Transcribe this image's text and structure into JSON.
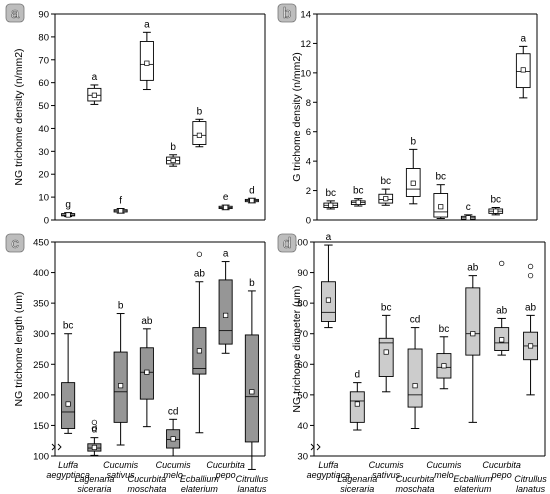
{
  "chart_data": [
    {
      "type": "boxplot",
      "panel_label": "a",
      "ylabel": "NG trichome density (n/mm2)",
      "ylim": [
        0,
        90
      ],
      "yticks": [
        0,
        10,
        20,
        30,
        40,
        50,
        60,
        70,
        80,
        90
      ],
      "categories": [
        "Luffa aegyptiaca",
        "Lagenaria siceraria",
        "Cucumis sativus",
        "Cucumis moschata",
        "Cucumis melo",
        "Ecballium elaterium",
        "Cucurbita pepo",
        "Citrullus lanatus"
      ],
      "boxes": [
        {
          "min": 1.5,
          "q1": 1.8,
          "median": 2.2,
          "q3": 2.8,
          "max": 3.2,
          "mean": 2.2,
          "letter": "g"
        },
        {
          "min": 50.5,
          "q1": 52,
          "median": 54.5,
          "q3": 57.5,
          "max": 59,
          "mean": 54.5,
          "letter": "a"
        },
        {
          "min": 3,
          "q1": 3.5,
          "median": 4,
          "q3": 4.5,
          "max": 5,
          "mean": 4,
          "letter": "f"
        },
        {
          "min": 57,
          "q1": 61,
          "median": 68,
          "q3": 78,
          "max": 82,
          "mean": 68.5,
          "letter": "a"
        },
        {
          "min": 23.5,
          "q1": 24.5,
          "median": 26,
          "q3": 27.5,
          "max": 28.5,
          "mean": 26,
          "letter": "b"
        },
        {
          "min": 32,
          "q1": 33,
          "median": 37,
          "q3": 43,
          "max": 44,
          "mean": 37,
          "letter": "b"
        },
        {
          "min": 4.5,
          "q1": 5,
          "median": 5.5,
          "q3": 6,
          "max": 6.5,
          "mean": 5.5,
          "letter": "e"
        },
        {
          "min": 7.5,
          "q1": 8,
          "median": 8.5,
          "q3": 9,
          "max": 9.5,
          "mean": 8.5,
          "letter": "d"
        }
      ]
    },
    {
      "type": "boxplot",
      "panel_label": "b",
      "ylabel": "G trichome density (n/mm2)",
      "ylim": [
        0,
        14
      ],
      "yticks": [
        0,
        2,
        4,
        6,
        8,
        10,
        12,
        14
      ],
      "categories": [
        "Luffa aegyptiaca",
        "Lagenaria siceraria",
        "Cucumis sativus",
        "Cucumis moschata",
        "Cucumis melo",
        "Ecballium elaterium",
        "Cucurbita pepo",
        "Citrullus lanatus"
      ],
      "boxes": [
        {
          "min": 0.75,
          "q1": 0.85,
          "median": 1.0,
          "q3": 1.15,
          "max": 1.3,
          "mean": 1.0,
          "letter": "bc"
        },
        {
          "min": 0.95,
          "q1": 1.05,
          "median": 1.2,
          "q3": 1.3,
          "max": 1.45,
          "mean": 1.2,
          "letter": "bc"
        },
        {
          "min": 1.0,
          "q1": 1.15,
          "median": 1.4,
          "q3": 1.75,
          "max": 2.1,
          "mean": 1.45,
          "letter": "bc"
        },
        {
          "min": 1.1,
          "q1": 1.6,
          "median": 2.1,
          "q3": 3.5,
          "max": 4.8,
          "mean": 2.5,
          "letter": "b"
        },
        {
          "min": 0.1,
          "q1": 0.2,
          "median": 0.55,
          "q3": 1.8,
          "max": 2.4,
          "mean": 0.9,
          "letter": "bc"
        },
        {
          "min": 0.02,
          "q1": 0.05,
          "median": 0.15,
          "q3": 0.25,
          "max": 0.35,
          "mean": 0.15,
          "letter": "c"
        },
        {
          "min": 0.35,
          "q1": 0.45,
          "median": 0.6,
          "q3": 0.75,
          "max": 0.85,
          "mean": 0.6,
          "letter": "bc"
        },
        {
          "min": 8.3,
          "q1": 9.0,
          "median": 10.1,
          "q3": 11.3,
          "max": 11.8,
          "mean": 10.2,
          "letter": "a"
        }
      ]
    },
    {
      "type": "boxplot",
      "panel_label": "c",
      "ylabel": "NG trichome length (um)",
      "ylim": [
        100,
        450
      ],
      "yticks": [
        100,
        150,
        200,
        250,
        300,
        350,
        400,
        450
      ],
      "categories": [
        "Luffa aegyptiaca",
        "Lagenaria siceraria",
        "Cucumis sativus",
        "Cucurbita moschata",
        "Cucumis melo",
        "Ecballium elaterium",
        "Cucurbita pepo",
        "Citrullus lanatus"
      ],
      "boxes": [
        {
          "min": 137,
          "q1": 145,
          "median": 172,
          "q3": 220,
          "max": 300,
          "mean": 185,
          "letter": "bc",
          "outliers": []
        },
        {
          "min": 101,
          "q1": 108,
          "median": 113,
          "q3": 120,
          "max": 130,
          "mean": 114,
          "letter": "d",
          "outliers": [
            145,
            155
          ]
        },
        {
          "min": 118,
          "q1": 155,
          "median": 205,
          "q3": 270,
          "max": 333,
          "mean": 215,
          "letter": "b",
          "outliers": []
        },
        {
          "min": 148,
          "q1": 193,
          "median": 237,
          "q3": 277,
          "max": 308,
          "mean": 237,
          "letter": "ab",
          "outliers": []
        },
        {
          "min": 100,
          "q1": 113,
          "median": 127,
          "q3": 143,
          "max": 160,
          "mean": 128,
          "letter": "cd",
          "outliers": []
        },
        {
          "min": 138,
          "q1": 234,
          "median": 243,
          "q3": 310,
          "max": 385,
          "mean": 272,
          "letter": "ab",
          "outliers": [
            430
          ]
        },
        {
          "min": 268,
          "q1": 283,
          "median": 305,
          "q3": 388,
          "max": 418,
          "mean": 330,
          "letter": "a",
          "outliers": []
        },
        {
          "min": 78,
          "q1": 123,
          "median": 197,
          "q3": 298,
          "max": 370,
          "mean": 205,
          "letter": "b",
          "outliers": []
        }
      ]
    },
    {
      "type": "boxplot",
      "panel_label": "d",
      "ylabel": "NG trichome diameter (um)",
      "ylim": [
        30,
        100
      ],
      "yticks": [
        30,
        40,
        50,
        60,
        70,
        80,
        90,
        100
      ],
      "categories": [
        "Luffa aegyptiaca",
        "Lagenaria siceraria",
        "Cucumis sativus",
        "Cucurbita moschata",
        "Cucumis melo",
        "Ecballium elaterium",
        "Cucurbita pepo",
        "Citrullus lanatus"
      ],
      "boxes": [
        {
          "min": 72,
          "q1": 74,
          "median": 77,
          "q3": 87,
          "max": 99,
          "mean": 81,
          "letter": "a",
          "outliers": []
        },
        {
          "min": 38.5,
          "q1": 41,
          "median": 48,
          "q3": 51,
          "max": 54,
          "mean": 47,
          "letter": "d",
          "outliers": []
        },
        {
          "min": 51,
          "q1": 56,
          "median": 67,
          "q3": 68.5,
          "max": 76,
          "mean": 64,
          "letter": "bc",
          "outliers": []
        },
        {
          "min": 39,
          "q1": 46,
          "median": 50,
          "q3": 65,
          "max": 72,
          "mean": 53,
          "letter": "cd",
          "outliers": []
        },
        {
          "min": 52,
          "q1": 55.5,
          "median": 59,
          "q3": 63.5,
          "max": 69,
          "mean": 59.5,
          "letter": "bc",
          "outliers": []
        },
        {
          "min": 41,
          "q1": 63,
          "median": 70,
          "q3": 85,
          "max": 89,
          "mean": 70,
          "letter": "ab",
          "outliers": []
        },
        {
          "min": 63,
          "q1": 64.5,
          "median": 67,
          "q3": 72,
          "max": 75,
          "mean": 68,
          "letter": "ab",
          "outliers": [
            93
          ]
        },
        {
          "min": 50,
          "q1": 61.5,
          "median": 66,
          "q3": 70.5,
          "max": 76,
          "mean": 66,
          "letter": "ab",
          "outliers": [
            89,
            92
          ]
        }
      ]
    }
  ],
  "x_labels": {
    "c": [
      {
        "line1": "Luffa",
        "line2": "aegyptiaca"
      },
      {
        "line1": "Lagenaria",
        "line2": "siceraria"
      },
      {
        "line1": "Cucumis",
        "line2": "sativus"
      },
      {
        "line1": "Cucurbita",
        "line2": "moschata"
      },
      {
        "line1": "Cucumis",
        "line2": "melo"
      },
      {
        "line1": "Ecballium",
        "line2": "elaterium"
      },
      {
        "line1": "Cucurbita",
        "line2": "pepo"
      },
      {
        "line1": "Citrullus",
        "line2": "lanatus"
      }
    ],
    "d": [
      {
        "line1": "Luffa",
        "line2": "aegyptiaca"
      },
      {
        "line1": "Lagenaria",
        "line2": "siceraria"
      },
      {
        "line1": "Cucumis",
        "line2": "sativus"
      },
      {
        "line1": "Cucurbita",
        "line2": "moschata"
      },
      {
        "line1": "Cucumis",
        "line2": "melo"
      },
      {
        "line1": "Ecballium",
        "line2": "elaterium"
      },
      {
        "line1": "Cucurbita",
        "line2": "pepo"
      },
      {
        "line1": "Citrullus",
        "line2": "lanatus"
      }
    ]
  },
  "colors": {
    "open_box_fill": "#ffffff",
    "filled_box_c": "#969696",
    "filled_box_d": "#cccccc",
    "stroke": "#000000",
    "panel_badge_fill": "#bdbdbd"
  }
}
